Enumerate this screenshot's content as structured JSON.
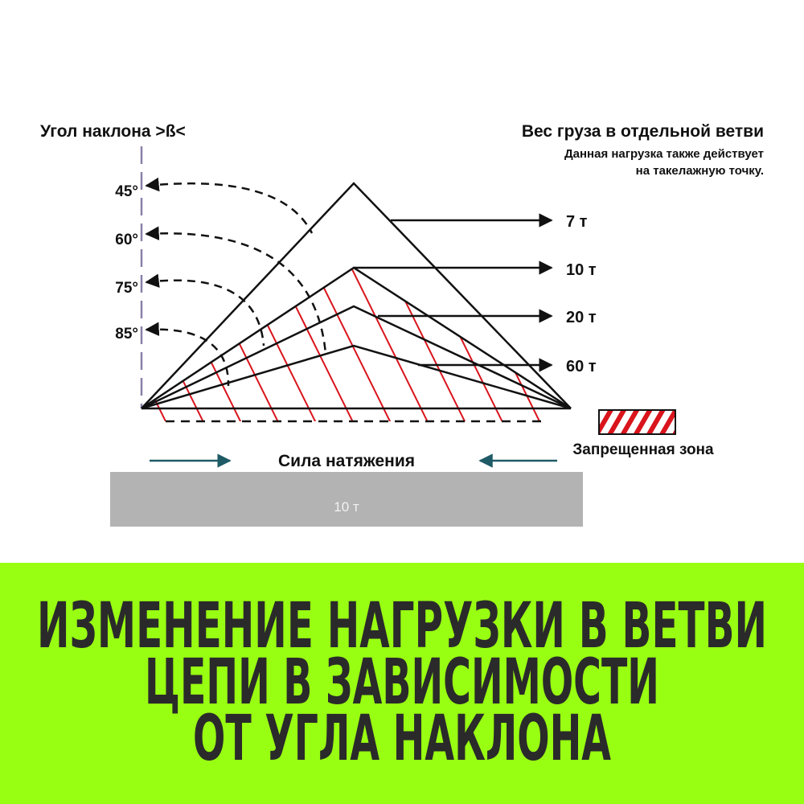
{
  "left_title": "Угол наклона >ß<",
  "right_title": "Вес груза в отдельной ветви",
  "right_note_line1": "Данная нагрузка также действует",
  "right_note_line2": "на такелажную точку.",
  "angles": [
    "45°",
    "60°",
    "75°",
    "85°"
  ],
  "loads": [
    "7 т",
    "10 т",
    "20 т",
    "60 т"
  ],
  "legend_label": "Запрещенная зона",
  "tension_label": "Сила натяжения",
  "load_box_label": "10 т",
  "banner": {
    "line1": "ИЗМЕНЕНИЕ НАГРУЗКИ В ВЕТВИ",
    "line2": "ЦЕПИ В ЗАВИСИМОСТИ",
    "line3": "ОТ УГЛА НАКЛОНА"
  },
  "colors": {
    "banner_bg": "#99ff12",
    "banner_text": "#2a2a2a",
    "hatch": "#d9141c",
    "arrow_teal": "#1f5b66",
    "axis": "#8a80a8",
    "load_box": "#b3b3b3"
  }
}
